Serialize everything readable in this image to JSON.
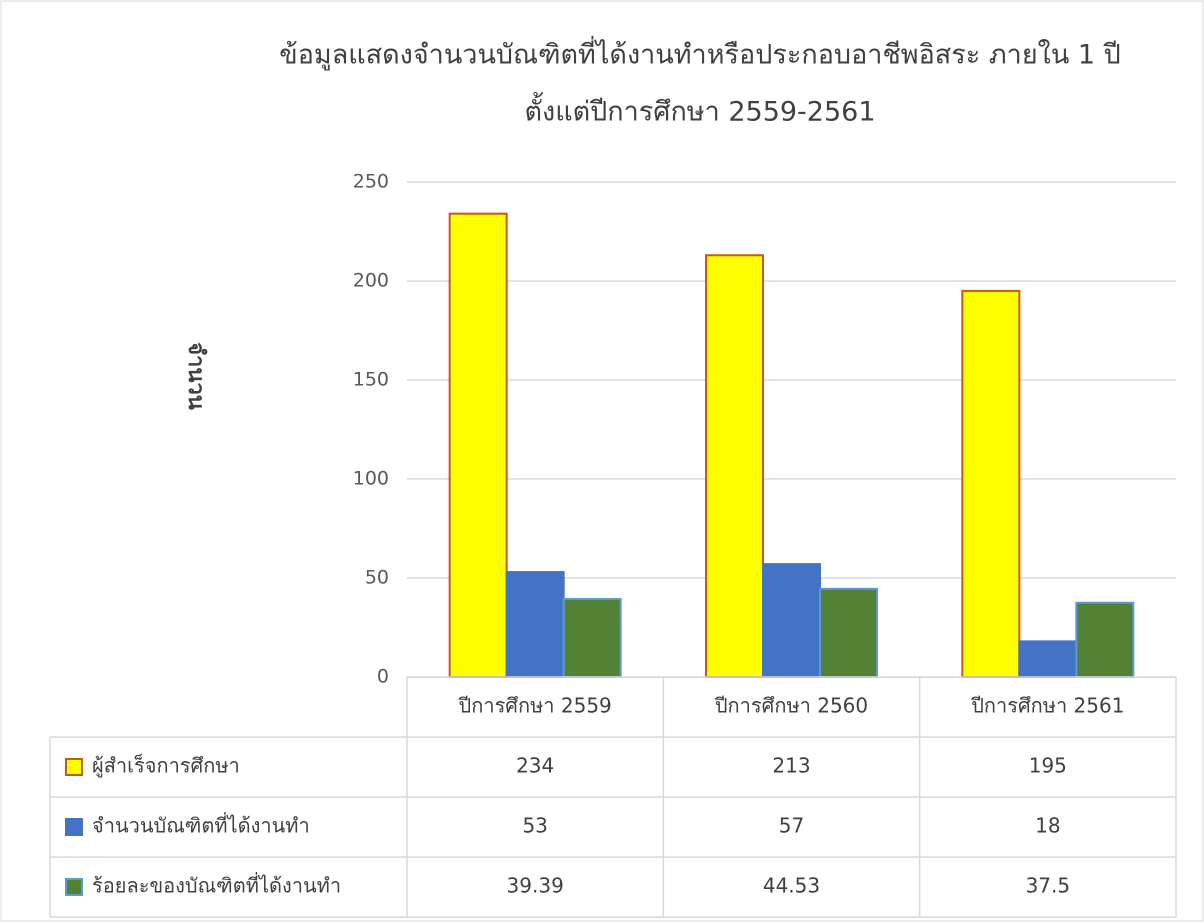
{
  "chart_data": {
    "type": "bar",
    "title": [
      "ข้อมูลแสดงจำนวนบัณฑิตที่ได้งานทำหรือประกอบอาชีพอิสระ  ภายใน 1 ปี",
      "ตั้งแต่ปีการศึกษา  2559-2561"
    ],
    "ylabel": "จำนวน",
    "categories": [
      "ปีการศึกษา 2559",
      "ปีการศึกษา 2560",
      "ปีการศึกษา 2561"
    ],
    "series": [
      {
        "name": "ผู้สำเร็จการศึกษา",
        "color": "#ffff00",
        "edgecolor": "#c55a11",
        "values": [
          234,
          213,
          195
        ]
      },
      {
        "name": "จำนวนบัณฑิตที่ได้งานทำ",
        "color": "#4472c4",
        "edgecolor": "#4472c4",
        "values": [
          53,
          57,
          18
        ]
      },
      {
        "name": "ร้อยละของบัณฑิตที่ได้งานทำ",
        "color": "#548235",
        "edgecolor": "#5b9bd5",
        "values": [
          39.39,
          44.53,
          37.5
        ]
      }
    ],
    "ylim": [
      0,
      250
    ],
    "yticks": [
      0,
      50,
      100,
      150,
      200,
      250
    ],
    "grid": true,
    "data_table": true
  }
}
